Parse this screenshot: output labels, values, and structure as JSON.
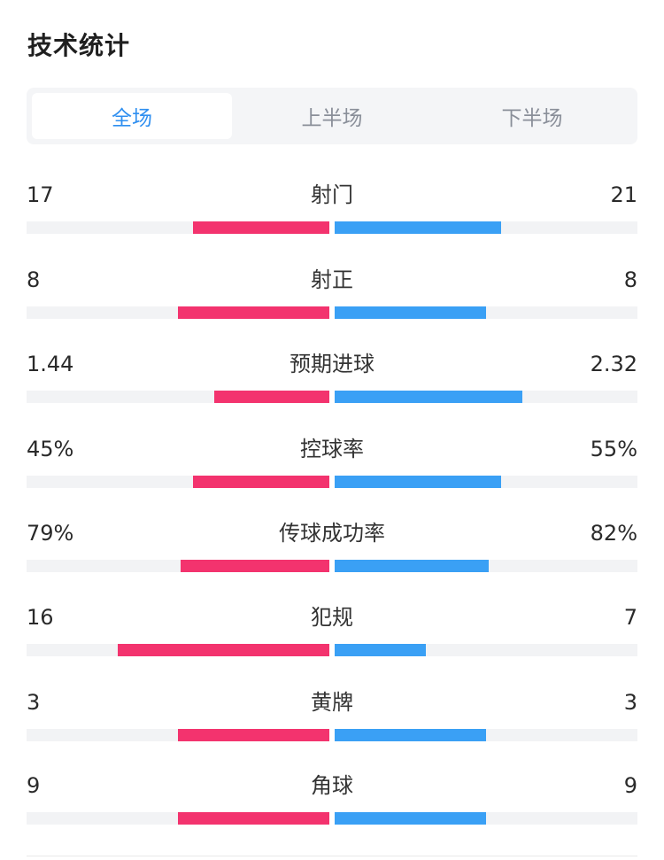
{
  "header": {
    "title": "技术统计"
  },
  "tabs": [
    {
      "label": "全场",
      "active": true
    },
    {
      "label": "上半场",
      "active": false
    },
    {
      "label": "下半场",
      "active": false
    }
  ],
  "colors": {
    "home": "#f3336e",
    "away": "#3aa0f5",
    "accent": "#2f8ff0",
    "track": "#f2f3f5"
  },
  "stats": [
    {
      "name": "射门",
      "left": "17",
      "right": "21",
      "left_share": 0.45,
      "right_share": 0.55
    },
    {
      "name": "射正",
      "left": "8",
      "right": "8",
      "left_share": 0.5,
      "right_share": 0.5
    },
    {
      "name": "预期进球",
      "left": "1.44",
      "right": "2.32",
      "left_share": 0.38,
      "right_share": 0.62
    },
    {
      "name": "控球率",
      "left": "45%",
      "right": "55%",
      "left_share": 0.45,
      "right_share": 0.55
    },
    {
      "name": "传球成功率",
      "left": "79%",
      "right": "82%",
      "left_share": 0.49,
      "right_share": 0.51
    },
    {
      "name": "犯规",
      "left": "16",
      "right": "7",
      "left_share": 0.7,
      "right_share": 0.3
    },
    {
      "name": "黄牌",
      "left": "3",
      "right": "3",
      "left_share": 0.5,
      "right_share": 0.5
    },
    {
      "name": "角球",
      "left": "9",
      "right": "9",
      "left_share": 0.5,
      "right_share": 0.5
    }
  ]
}
